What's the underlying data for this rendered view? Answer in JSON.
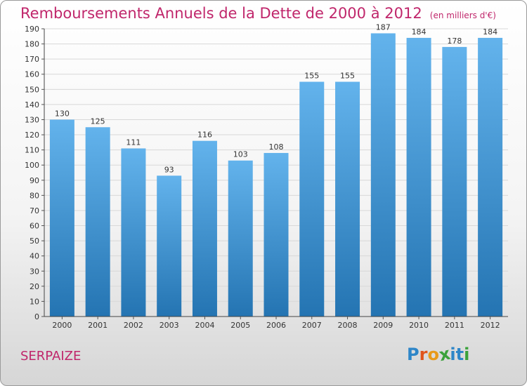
{
  "title": "Remboursements Annuels de la Dette de 2000 à 2012",
  "unit_note": "(en milliers d'€)",
  "commune": "SERPAIZE",
  "logo": {
    "text": "Proxiti",
    "letters": [
      "P",
      "r",
      "o",
      "x",
      "i",
      "t",
      "i"
    ],
    "colors": [
      "#2e86c8",
      "#e0541b",
      "#e89a1a",
      "#3aa23a",
      "#2e86c8",
      "#2e86c8",
      "#3aa23a"
    ]
  },
  "colors": {
    "title": "#c0266b",
    "bar_top": "#63b3ec",
    "bar_bottom": "#2474b2",
    "grid": "#d8d8d8"
  },
  "chart_data": {
    "type": "bar",
    "categories": [
      "2000",
      "2001",
      "2002",
      "2003",
      "2004",
      "2005",
      "2006",
      "2007",
      "2008",
      "2009",
      "2010",
      "2011",
      "2012"
    ],
    "values": [
      130,
      125,
      111,
      93,
      116,
      103,
      108,
      155,
      155,
      187,
      184,
      178,
      184
    ],
    "ylim": [
      0,
      190
    ],
    "yticks": [
      0,
      10,
      20,
      30,
      40,
      50,
      60,
      70,
      80,
      90,
      100,
      110,
      120,
      130,
      140,
      150,
      160,
      170,
      180,
      190
    ],
    "grid": true,
    "title": "Remboursements Annuels de la Dette de 2000 à 2012",
    "xlabel": "",
    "ylabel": ""
  }
}
